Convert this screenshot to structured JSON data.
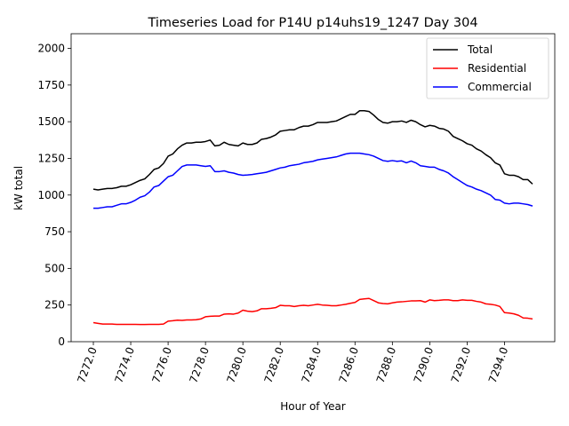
{
  "chart_data": {
    "type": "line",
    "title": "Timeseries Load for P14U p14uhs19_1247  Day 304",
    "xlabel": "Hour of Year",
    "ylabel": "kW total",
    "xlim": [
      7270.81,
      7296.69
    ],
    "ylim": [
      0,
      2100
    ],
    "xticks": [
      7272,
      7274,
      7276,
      7278,
      7280,
      7282,
      7284,
      7286,
      7288,
      7290,
      7292,
      7294
    ],
    "xtick_labels": [
      "7272.0",
      "7274.0",
      "7276.0",
      "7278.0",
      "7280.0",
      "7282.0",
      "7284.0",
      "7286.0",
      "7288.0",
      "7290.0",
      "7292.0",
      "7294.0"
    ],
    "yticks": [
      0,
      250,
      500,
      750,
      1000,
      1250,
      1500,
      1750,
      2000
    ],
    "ytick_labels": [
      "0",
      "250",
      "500",
      "750",
      "1000",
      "1250",
      "1500",
      "1750",
      "2000"
    ],
    "grid": false,
    "legend_position": "top-right",
    "x": [
      7272.0,
      7272.25,
      7272.5,
      7272.75,
      7273.0,
      7273.25,
      7273.5,
      7273.75,
      7274.0,
      7274.25,
      7274.5,
      7274.75,
      7275.0,
      7275.25,
      7275.5,
      7275.75,
      7276.0,
      7276.25,
      7276.5,
      7276.75,
      7277.0,
      7277.25,
      7277.5,
      7277.75,
      7278.0,
      7278.25,
      7278.5,
      7278.75,
      7279.0,
      7279.25,
      7279.5,
      7279.75,
      7280.0,
      7280.25,
      7280.5,
      7280.75,
      7281.0,
      7281.25,
      7281.5,
      7281.75,
      7282.0,
      7282.25,
      7282.5,
      7282.75,
      7283.0,
      7283.25,
      7283.5,
      7283.75,
      7284.0,
      7284.25,
      7284.5,
      7284.75,
      7285.0,
      7285.25,
      7285.5,
      7285.75,
      7286.0,
      7286.25,
      7286.5,
      7286.75,
      7287.0,
      7287.25,
      7287.5,
      7287.75,
      7288.0,
      7288.25,
      7288.5,
      7288.75,
      7289.0,
      7289.25,
      7289.5,
      7289.75,
      7290.0,
      7290.25,
      7290.5,
      7290.75,
      7291.0,
      7291.25,
      7291.5,
      7291.75,
      7292.0,
      7292.25,
      7292.5,
      7292.75,
      7293.0,
      7293.25,
      7293.5,
      7293.75,
      7294.0,
      7294.25,
      7294.5,
      7294.75,
      7295.0,
      7295.25,
      7295.5
    ],
    "series": [
      {
        "name": "Total",
        "color": "#000000",
        "values": [
          1040,
          1035,
          1040,
          1045,
          1045,
          1050,
          1060,
          1060,
          1070,
          1085,
          1100,
          1110,
          1140,
          1175,
          1185,
          1215,
          1265,
          1280,
          1315,
          1340,
          1355,
          1355,
          1360,
          1360,
          1365,
          1375,
          1335,
          1340,
          1360,
          1345,
          1340,
          1335,
          1355,
          1345,
          1345,
          1355,
          1380,
          1385,
          1395,
          1410,
          1435,
          1440,
          1445,
          1445,
          1460,
          1470,
          1470,
          1480,
          1495,
          1495,
          1495,
          1500,
          1505,
          1520,
          1535,
          1550,
          1550,
          1575,
          1575,
          1570,
          1545,
          1515,
          1495,
          1490,
          1500,
          1500,
          1505,
          1495,
          1510,
          1500,
          1480,
          1465,
          1475,
          1470,
          1455,
          1450,
          1435,
          1400,
          1385,
          1370,
          1350,
          1340,
          1315,
          1300,
          1275,
          1255,
          1220,
          1205,
          1145,
          1135,
          1135,
          1125,
          1105,
          1105,
          1075
        ]
      },
      {
        "name": "Residential",
        "color": "#ff0000",
        "values": [
          130,
          125,
          120,
          120,
          120,
          118,
          118,
          118,
          118,
          118,
          117,
          117,
          118,
          118,
          118,
          120,
          140,
          143,
          147,
          145,
          148,
          148,
          150,
          155,
          170,
          173,
          175,
          175,
          188,
          190,
          188,
          195,
          215,
          208,
          205,
          210,
          225,
          225,
          228,
          232,
          248,
          245,
          245,
          240,
          245,
          248,
          245,
          250,
          255,
          250,
          248,
          245,
          245,
          250,
          255,
          262,
          268,
          288,
          292,
          295,
          280,
          265,
          260,
          258,
          265,
          270,
          272,
          275,
          278,
          278,
          280,
          270,
          285,
          280,
          282,
          285,
          285,
          280,
          280,
          285,
          282,
          282,
          275,
          270,
          258,
          255,
          250,
          240,
          198,
          195,
          190,
          180,
          162,
          160,
          155
        ]
      },
      {
        "name": "Commercial",
        "color": "#0000ff",
        "values": [
          910,
          910,
          915,
          920,
          920,
          930,
          940,
          940,
          950,
          965,
          985,
          995,
          1020,
          1055,
          1065,
          1095,
          1125,
          1135,
          1165,
          1195,
          1205,
          1205,
          1205,
          1200,
          1195,
          1200,
          1160,
          1160,
          1165,
          1155,
          1150,
          1140,
          1135,
          1137,
          1140,
          1145,
          1150,
          1155,
          1165,
          1175,
          1185,
          1190,
          1200,
          1205,
          1210,
          1220,
          1225,
          1230,
          1240,
          1245,
          1250,
          1255,
          1260,
          1270,
          1280,
          1285,
          1285,
          1285,
          1280,
          1275,
          1265,
          1250,
          1235,
          1230,
          1235,
          1230,
          1233,
          1220,
          1232,
          1220,
          1200,
          1195,
          1190,
          1190,
          1175,
          1165,
          1150,
          1125,
          1105,
          1085,
          1065,
          1055,
          1040,
          1030,
          1015,
          1000,
          970,
          965,
          945,
          940,
          945,
          945,
          940,
          935,
          925
        ]
      }
    ]
  }
}
